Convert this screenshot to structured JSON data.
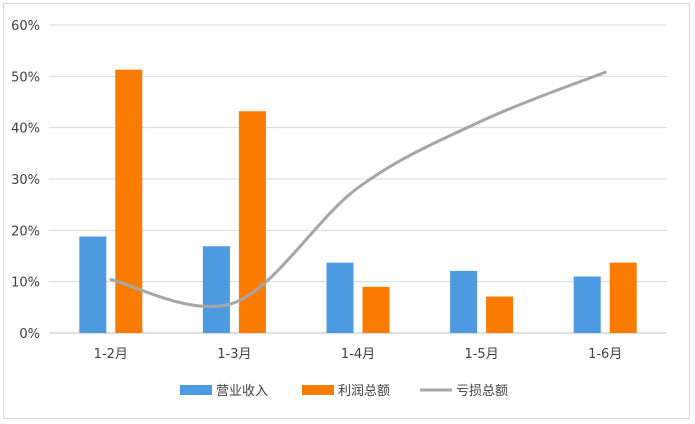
{
  "chart_data": {
    "type": "bar",
    "categories": [
      "1-2月",
      "1-3月",
      "1-4月",
      "1-5月",
      "1-6月"
    ],
    "series": [
      {
        "name": "营业收入",
        "kind": "bar",
        "color": "#4e9ae0",
        "values": [
          18.8,
          16.9,
          13.7,
          12.1,
          11.0
        ]
      },
      {
        "name": "利润总额",
        "kind": "bar",
        "color": "#f97c00",
        "values": [
          51.3,
          43.2,
          9.0,
          7.1,
          13.7
        ]
      },
      {
        "name": "亏损总额",
        "kind": "line",
        "color": "#a6a6a6",
        "values": [
          10.4,
          5.9,
          28.3,
          41.3,
          50.8
        ]
      }
    ],
    "y_ticks": [
      "0%",
      "10%",
      "20%",
      "30%",
      "40%",
      "50%",
      "60%"
    ],
    "ylim": [
      0,
      60
    ],
    "grid": true,
    "legend_position": "bottom"
  }
}
